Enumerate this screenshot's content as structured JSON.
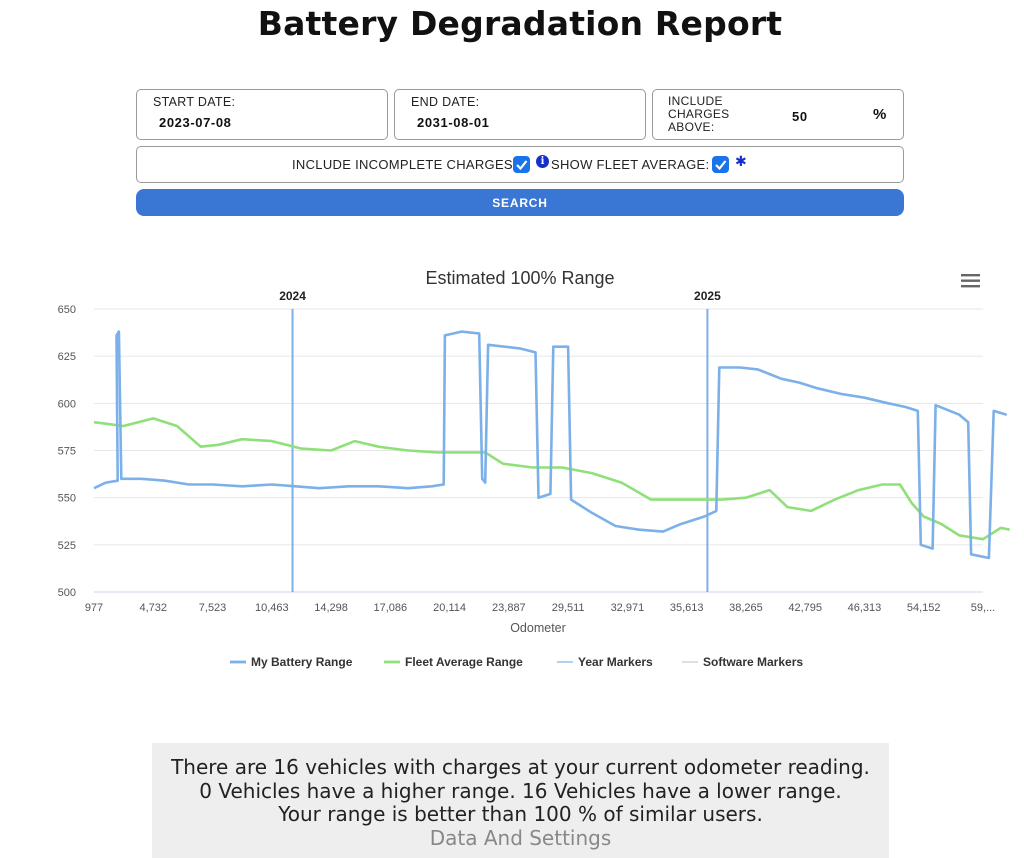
{
  "title": "Battery Degradation Report",
  "form": {
    "start_label": "START DATE:",
    "start_value": "2023-07-08",
    "end_label": "END DATE:",
    "end_value": "2031-08-01",
    "charges_label": "INCLUDE CHARGES ABOVE:",
    "charges_value": "50",
    "charges_unit": "%",
    "incomplete_label": "INCLUDE INCOMPLETE CHARGES:",
    "incomplete_checked": true,
    "fleet_label": "SHOW FLEET AVERAGE:",
    "fleet_checked": true,
    "search_label": "SEARCH"
  },
  "chart_data": {
    "type": "line",
    "title": "Estimated 100% Range",
    "xlabel": "Odometer",
    "ylabel": "",
    "ylim": [
      500,
      650
    ],
    "yticks": [
      "500",
      "525",
      "550",
      "575",
      "600",
      "625",
      "650"
    ],
    "x_categories": [
      "977",
      "4,732",
      "7,523",
      "10,463",
      "14,298",
      "17,086",
      "20,114",
      "23,887",
      "29,511",
      "32,971",
      "35,613",
      "38,265",
      "42,795",
      "46,313",
      "54,152",
      "59,..."
    ],
    "grid": true,
    "legend_position": "bottom",
    "year_markers": [
      {
        "label": "2024",
        "category_position": 3.35
      },
      {
        "label": "2025",
        "category_position": 10.35
      }
    ],
    "series": [
      {
        "name": "My Battery Range",
        "color": "#7cb0e8",
        "points": [
          [
            0,
            555
          ],
          [
            0.2,
            558
          ],
          [
            0.4,
            559
          ],
          [
            0.38,
            636
          ],
          [
            0.42,
            638
          ],
          [
            0.46,
            560
          ],
          [
            0.8,
            560
          ],
          [
            1.2,
            559
          ],
          [
            1.6,
            557
          ],
          [
            2.0,
            557
          ],
          [
            2.5,
            556
          ],
          [
            3.0,
            557
          ],
          [
            3.4,
            556
          ],
          [
            3.8,
            555
          ],
          [
            4.3,
            556
          ],
          [
            4.8,
            556
          ],
          [
            5.3,
            555
          ],
          [
            5.7,
            556
          ],
          [
            5.9,
            557
          ],
          [
            5.92,
            636
          ],
          [
            6.2,
            638
          ],
          [
            6.5,
            637
          ],
          [
            6.55,
            560
          ],
          [
            6.6,
            558
          ],
          [
            6.65,
            631
          ],
          [
            7.2,
            629
          ],
          [
            7.45,
            627
          ],
          [
            7.5,
            550
          ],
          [
            7.7,
            552
          ],
          [
            7.75,
            630
          ],
          [
            8.0,
            630
          ],
          [
            8.05,
            549
          ],
          [
            8.4,
            542
          ],
          [
            8.8,
            535
          ],
          [
            9.2,
            533
          ],
          [
            9.6,
            532
          ],
          [
            9.9,
            536
          ],
          [
            10.3,
            540
          ],
          [
            10.5,
            543
          ],
          [
            10.55,
            619
          ],
          [
            10.9,
            619
          ],
          [
            11.2,
            618
          ],
          [
            11.6,
            613
          ],
          [
            11.9,
            611
          ],
          [
            12.2,
            608
          ],
          [
            12.6,
            605
          ],
          [
            13.0,
            603
          ],
          [
            13.4,
            600
          ],
          [
            13.7,
            598
          ],
          [
            13.9,
            596
          ],
          [
            13.95,
            525
          ],
          [
            14.15,
            523
          ],
          [
            14.2,
            599
          ],
          [
            14.6,
            594
          ],
          [
            14.75,
            590
          ],
          [
            14.8,
            520
          ],
          [
            15.1,
            518
          ],
          [
            15.18,
            596
          ],
          [
            15.4,
            594
          ]
        ]
      },
      {
        "name": "Fleet Average Range",
        "color": "#90e07a",
        "points": [
          [
            0,
            590
          ],
          [
            0.5,
            588
          ],
          [
            1.0,
            592
          ],
          [
            1.4,
            588
          ],
          [
            1.8,
            577
          ],
          [
            2.1,
            578
          ],
          [
            2.5,
            581
          ],
          [
            3.0,
            580
          ],
          [
            3.5,
            576
          ],
          [
            4.0,
            575
          ],
          [
            4.4,
            580
          ],
          [
            4.8,
            577
          ],
          [
            5.3,
            575
          ],
          [
            5.8,
            574
          ],
          [
            6.2,
            574
          ],
          [
            6.6,
            574
          ],
          [
            6.9,
            568
          ],
          [
            7.4,
            566
          ],
          [
            7.9,
            566
          ],
          [
            8.4,
            563
          ],
          [
            8.9,
            558
          ],
          [
            9.4,
            549
          ],
          [
            9.8,
            549
          ],
          [
            10.2,
            549
          ],
          [
            10.6,
            549
          ],
          [
            11.0,
            550
          ],
          [
            11.4,
            554
          ],
          [
            11.7,
            545
          ],
          [
            12.1,
            543
          ],
          [
            12.5,
            549
          ],
          [
            12.9,
            554
          ],
          [
            13.3,
            557
          ],
          [
            13.6,
            557
          ],
          [
            13.8,
            547
          ],
          [
            14.0,
            540
          ],
          [
            14.3,
            536
          ],
          [
            14.6,
            530
          ],
          [
            15.0,
            528
          ],
          [
            15.3,
            534
          ],
          [
            15.45,
            533
          ]
        ]
      },
      {
        "name": "Year Markers",
        "color": "#7cb0e8"
      },
      {
        "name": "Software Markers",
        "color": "#cccccc"
      }
    ]
  },
  "summary": {
    "line1": "There are 16 vehicles with charges at your current odometer reading.",
    "line2": "0 Vehicles have a higher range. 16 Vehicles have a lower range.",
    "line3": "Your range is better than 100 % of similar users.",
    "line4": "Data And Settings"
  },
  "icons": {
    "menu": "hamburger-menu-icon",
    "info": "info-icon",
    "settings": "gear-icon",
    "checkbox": "checkmark-icon"
  }
}
